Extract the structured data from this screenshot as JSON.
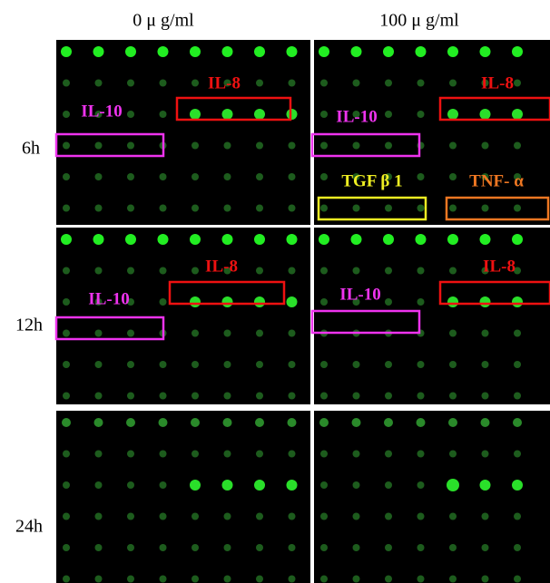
{
  "columns": [
    "0 μ g/ml",
    "100 μ g/ml"
  ],
  "rows": [
    "6h",
    "12h",
    "24h"
  ],
  "annotations": [
    {
      "text": "IL-8"
    },
    {
      "text": "IL-10"
    },
    {
      "text": "IL-8"
    },
    {
      "text": "IL-10"
    },
    {
      "text": "TGF β 1"
    },
    {
      "text": "TNF- α"
    },
    {
      "text": "IL-8"
    },
    {
      "text": "IL-10"
    },
    {
      "text": "IL-8"
    },
    {
      "text": "IL-10"
    }
  ]
}
